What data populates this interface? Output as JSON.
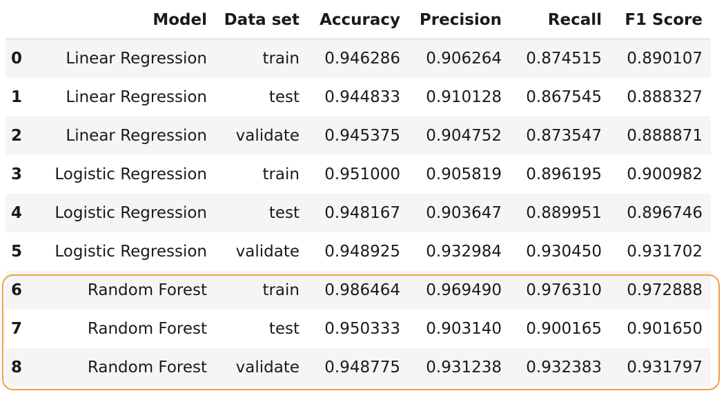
{
  "table": {
    "columns": {
      "index": "",
      "model": "Model",
      "dataset": "Data set",
      "accuracy": "Accuracy",
      "precision": "Precision",
      "recall": "Recall",
      "f1": "F1 Score"
    },
    "rows": [
      {
        "index": "0",
        "model": "Linear Regression",
        "dataset": "train",
        "accuracy": "0.946286",
        "precision": "0.906264",
        "recall": "0.874515",
        "f1": "0.890107"
      },
      {
        "index": "1",
        "model": "Linear Regression",
        "dataset": "test",
        "accuracy": "0.944833",
        "precision": "0.910128",
        "recall": "0.867545",
        "f1": "0.888327"
      },
      {
        "index": "2",
        "model": "Linear Regression",
        "dataset": "validate",
        "accuracy": "0.945375",
        "precision": "0.904752",
        "recall": "0.873547",
        "f1": "0.888871"
      },
      {
        "index": "3",
        "model": "Logistic Regression",
        "dataset": "train",
        "accuracy": "0.951000",
        "precision": "0.905819",
        "recall": "0.896195",
        "f1": "0.900982"
      },
      {
        "index": "4",
        "model": "Logistic Regression",
        "dataset": "test",
        "accuracy": "0.948167",
        "precision": "0.903647",
        "recall": "0.889951",
        "f1": "0.896746"
      },
      {
        "index": "5",
        "model": "Logistic Regression",
        "dataset": "validate",
        "accuracy": "0.948925",
        "precision": "0.932984",
        "recall": "0.930450",
        "f1": "0.931702"
      },
      {
        "index": "6",
        "model": "Random Forest",
        "dataset": "train",
        "accuracy": "0.986464",
        "precision": "0.969490",
        "recall": "0.976310",
        "f1": "0.972888"
      },
      {
        "index": "7",
        "model": "Random Forest",
        "dataset": "test",
        "accuracy": "0.950333",
        "precision": "0.903140",
        "recall": "0.900165",
        "f1": "0.901650"
      },
      {
        "index": "8",
        "model": "Random Forest",
        "dataset": "validate",
        "accuracy": "0.948775",
        "precision": "0.931238",
        "recall": "0.932383",
        "f1": "0.931797"
      }
    ],
    "highlight_rows": [
      6,
      7,
      8
    ],
    "colors": {
      "highlight_border": "#f0a040",
      "zebra": "#f5f5f5",
      "header_rule": "#cfcfcf"
    }
  }
}
